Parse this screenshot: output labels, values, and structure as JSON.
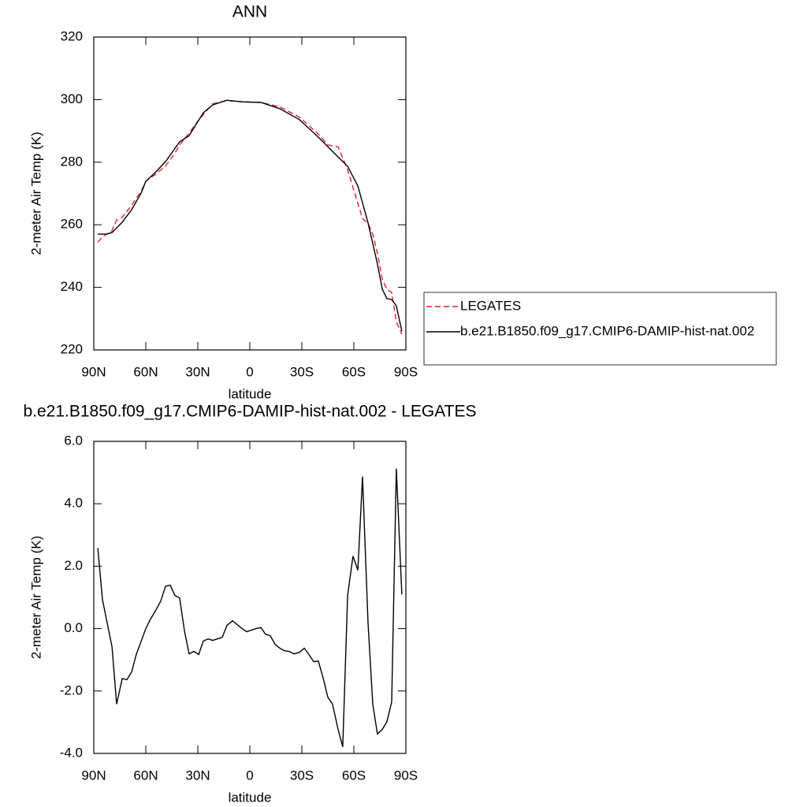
{
  "chart_data": [
    {
      "type": "line",
      "title": "ANN",
      "xlabel": "latitude",
      "ylabel": "2-meter Air Temp (K)",
      "xlim": [
        90,
        -90
      ],
      "xticks": [
        {
          "value": 90,
          "label": "90N"
        },
        {
          "value": 60,
          "label": "60N"
        },
        {
          "value": 30,
          "label": "30N"
        },
        0,
        {
          "value": -30,
          "label": "30S"
        },
        {
          "value": -60,
          "label": "60S"
        },
        {
          "value": -90,
          "label": "90S"
        }
      ],
      "ylim": [
        220,
        320
      ],
      "yticks": [
        220,
        240,
        260,
        280,
        300,
        320
      ],
      "legend": "right",
      "series": [
        {
          "name": "LEGATES",
          "color": "#e8202a",
          "dashed": true,
          "x": [
            87.7,
            85,
            79.5,
            76.8,
            73.6,
            68.2,
            62.7,
            60,
            54.5,
            48.6,
            43.2,
            40.5,
            35,
            29.5,
            21.4,
            13.2,
            4.5,
            -6.4,
            -17.3,
            -28.6,
            -39.5,
            -45,
            -50.9,
            -56.4,
            -59.5,
            -65,
            -68.2,
            -70.9,
            -73.6,
            -76.4,
            -79.1,
            -81.8,
            -84.5,
            -87.7
          ],
          "values": [
            254.4,
            256.1,
            258.1,
            261.5,
            262.4,
            266.2,
            270.7,
            273.9,
            276.1,
            278.8,
            282.9,
            285.5,
            289.3,
            293.5,
            298.7,
            299.7,
            299.3,
            299.1,
            297.7,
            294.4,
            289,
            285.5,
            284.9,
            277.6,
            272,
            262,
            260.4,
            257,
            250.9,
            242.6,
            239.4,
            238.4,
            229,
            225
          ]
        },
        {
          "name": "b.e21.B1850.f09_g17.CMIP6-DAMIP-hist-nat.002",
          "color": "#000000",
          "dashed": false,
          "x": [
            87.7,
            82.7,
            79.5,
            73.6,
            68.2,
            62.7,
            60,
            54.5,
            48.6,
            40.5,
            35,
            26.8,
            21.4,
            13.2,
            4.5,
            -6.4,
            -17.3,
            -28.6,
            -39.5,
            -50.9,
            -56.4,
            -62.3,
            -68.2,
            -73.6,
            -76.4,
            -79.1,
            -81.8,
            -84.5,
            -87.7
          ],
          "values": [
            257,
            257,
            257.5,
            260.8,
            264.8,
            270.1,
            273.9,
            276.7,
            280.2,
            286.5,
            288.5,
            295.8,
            298.3,
            299.8,
            299.3,
            299.1,
            297.1,
            293.6,
            288,
            281.7,
            278.7,
            272.4,
            260.6,
            247.5,
            239.4,
            236.4,
            236.1,
            234.1,
            226
          ]
        }
      ]
    },
    {
      "type": "line",
      "title": "b.e21.B1850.f09_g17.CMIP6-DAMIP-hist-nat.002 - LEGATES",
      "xlabel": "latitude",
      "ylabel": "2-meter Air Temp (K)",
      "xlim": [
        90,
        -90
      ],
      "xticks": [
        {
          "value": 90,
          "label": "90N"
        },
        {
          "value": 60,
          "label": "60N"
        },
        {
          "value": 30,
          "label": "30N"
        },
        0,
        {
          "value": -30,
          "label": "30S"
        },
        {
          "value": -60,
          "label": "60S"
        },
        {
          "value": -90,
          "label": "90S"
        }
      ],
      "ylim": [
        -4,
        6
      ],
      "yticks": [
        {
          "value": -4,
          "label": "-4.0"
        },
        {
          "value": -2,
          "label": "-2.0"
        },
        {
          "value": 0,
          "label": "0.0"
        },
        {
          "value": 2,
          "label": "2.0"
        },
        {
          "value": 4,
          "label": "4.0"
        },
        {
          "value": 6,
          "label": "6.0"
        }
      ],
      "series": [
        {
          "color": "#000000",
          "dashed": false,
          "x": [
            87.7,
            85,
            79.5,
            76.8,
            73.6,
            70.9,
            68.2,
            65.5,
            60,
            57.3,
            54.5,
            51.4,
            48.6,
            45.9,
            43.2,
            40.5,
            37.7,
            35,
            32.3,
            29.5,
            26.8,
            24.1,
            21.4,
            15.9,
            13.2,
            10,
            7.3,
            4.5,
            1.8,
            -0.9,
            -3.6,
            -6.4,
            -9,
            -11.8,
            -14.5,
            -17.3,
            -20,
            -22.7,
            -25.5,
            -28.6,
            -31.4,
            -34.1,
            -36.8,
            -39.5,
            -42.3,
            -45,
            -47.7,
            -50.9,
            -53.6,
            -56.4,
            -59.5,
            -62.3,
            -65,
            -68.2,
            -70.9,
            -73.6,
            -76.4,
            -79.1,
            -81.8,
            -84.5,
            -87.7
          ],
          "values": [
            2.58,
            0.93,
            -0.58,
            -2.42,
            -1.6,
            -1.64,
            -1.39,
            -0.83,
            0,
            0.3,
            0.56,
            0.88,
            1.36,
            1.39,
            1.06,
            0.98,
            -0.08,
            -0.81,
            -0.73,
            -0.83,
            -0.4,
            -0.33,
            -0.38,
            -0.28,
            0.1,
            0.25,
            0.13,
            0,
            -0.1,
            -0.05,
            0,
            0.03,
            -0.18,
            -0.23,
            -0.5,
            -0.63,
            -0.71,
            -0.73,
            -0.81,
            -0.76,
            -0.63,
            -0.83,
            -1.06,
            -1.04,
            -1.59,
            -2.2,
            -2.42,
            -3.23,
            -3.79,
            1.06,
            2.32,
            1.87,
            4.87,
            0.18,
            -2.42,
            -3.38,
            -3.23,
            -2.98,
            -2.35,
            5.13,
            1.09
          ]
        }
      ]
    }
  ]
}
